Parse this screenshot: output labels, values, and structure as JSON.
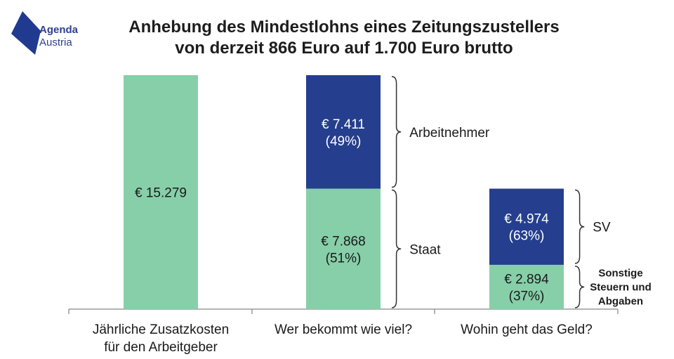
{
  "logo": {
    "line1": "Agenda",
    "line2": "Austria",
    "color": "#1f3a8f"
  },
  "title": {
    "line1": "Anhebung des Mindestlohns eines Zeitungszustellers",
    "line2": "von derzeit 866 Euro auf 1.700 Euro brutto"
  },
  "colors": {
    "green": "#87cfa9",
    "navy": "#253f8e",
    "axis": "#9a9a9a",
    "bracket": "#333333"
  },
  "chart_data": {
    "type": "bar",
    "stacked": true,
    "categories": [
      "Jährliche Zusatzkosten für den Arbeitgeber",
      "Wer bekommt wie viel?",
      "Wohin geht das Geld?"
    ],
    "category_lines": [
      [
        "Jährliche Zusatzkosten",
        "für den Arbeitgeber"
      ],
      [
        "Wer bekommt wie viel?"
      ],
      [
        "Wohin geht das Geld?"
      ]
    ],
    "ylim": [
      0,
      15279
    ],
    "grid": false,
    "legend": "none",
    "bars": [
      {
        "segments": [
          {
            "value": 15279,
            "color": "green",
            "label_lines": [
              "€ 15.279"
            ]
          }
        ]
      },
      {
        "segments": [
          {
            "value": 7868,
            "color": "green",
            "label_lines": [
              "€ 7.868",
              "(51%)"
            ],
            "annotation": [
              "Staat"
            ]
          },
          {
            "value": 7411,
            "color": "navy",
            "label_lines": [
              "€ 7.411",
              "(49%)"
            ],
            "annotation": [
              "Arbeitnehmer"
            ]
          }
        ]
      },
      {
        "segments": [
          {
            "value": 2894,
            "color": "green",
            "label_lines": [
              "€ 2.894",
              "(37%)"
            ],
            "annotation": [
              "Sonstige",
              "Steuern und",
              "Abgaben"
            ]
          },
          {
            "value": 4974,
            "color": "navy",
            "label_lines": [
              "€ 4.974",
              "(63%)"
            ],
            "annotation": [
              "SV"
            ]
          }
        ]
      }
    ]
  }
}
